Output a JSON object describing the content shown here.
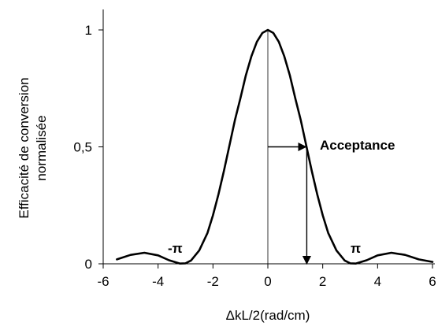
{
  "chart_data": {
    "type": "line",
    "title": "",
    "xlabel": "ΔkL/2(rad/cm)",
    "ylabel_lines": [
      "Efficacité de conversion",
      "normalisée"
    ],
    "xlim": [
      -6,
      6
    ],
    "ylim": [
      0,
      1
    ],
    "x_ticks": [
      -6,
      -4,
      -2,
      0,
      2,
      4,
      6
    ],
    "x_tick_labels": [
      "-6",
      "-4",
      "-2",
      "0",
      "2",
      "4",
      "6"
    ],
    "y_ticks": [
      0,
      0.5,
      1
    ],
    "y_tick_labels": [
      "0",
      "0,5",
      "1"
    ],
    "grid": false,
    "legend": "none",
    "series": [
      {
        "x": [
          -5.5,
          -5.0,
          -4.5,
          -4.0,
          -3.6,
          -3.2,
          -3.0,
          -2.8,
          -2.5,
          -2.2,
          -2.0,
          -1.8,
          -1.6,
          -1.4,
          -1.2,
          -1.0,
          -0.8,
          -0.6,
          -0.4,
          -0.2,
          0,
          0.2,
          0.4,
          0.6,
          0.8,
          1.0,
          1.2,
          1.4,
          1.6,
          1.8,
          2.0,
          2.2,
          2.5,
          2.8,
          3.0,
          3.2,
          3.6,
          4.0,
          4.5,
          5.0,
          5.5,
          6.0
        ],
        "y": [
          0.019,
          0.038,
          0.047,
          0.036,
          0.015,
          0.001,
          0.002,
          0.014,
          0.057,
          0.132,
          0.207,
          0.297,
          0.398,
          0.505,
          0.614,
          0.708,
          0.806,
          0.887,
          0.949,
          0.987,
          1.0,
          0.987,
          0.949,
          0.887,
          0.806,
          0.708,
          0.614,
          0.505,
          0.398,
          0.297,
          0.207,
          0.132,
          0.057,
          0.014,
          0.002,
          0.001,
          0.015,
          0.036,
          0.047,
          0.038,
          0.019,
          0.008
        ]
      }
    ],
    "annotations": {
      "acceptance_label": "Acceptance",
      "acceptance_x": 1.39,
      "acceptance_y": 0.5,
      "minus_pi_label": "-π",
      "minus_pi_x": -3.14,
      "pi_label": "π",
      "pi_x": 3.14
    }
  }
}
